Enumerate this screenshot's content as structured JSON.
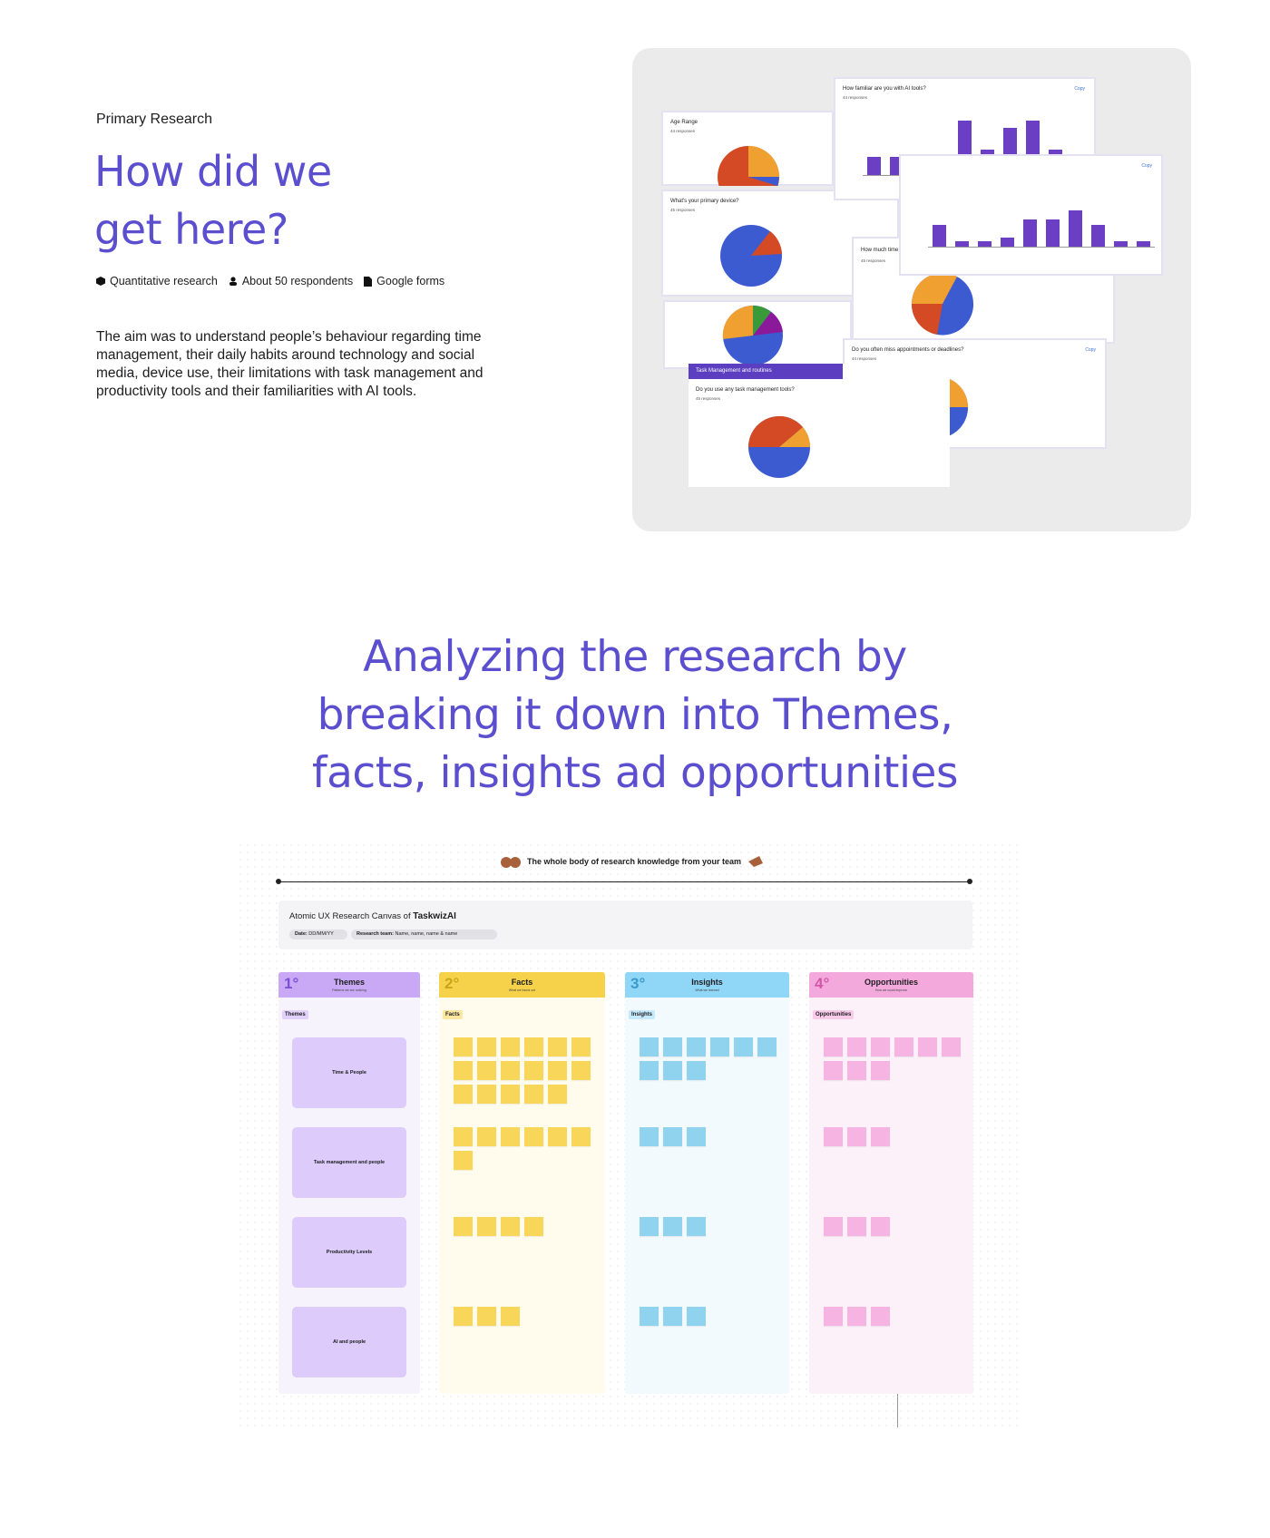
{
  "header": {
    "eyebrow": "Primary Research",
    "title_lines": [
      "How did we",
      "get here?"
    ]
  },
  "tags": [
    "Quantitative research",
    "About 50 respondents",
    "Google forms"
  ],
  "description": "The aim was to understand people’s behaviour regarding time management, their daily habits around technology and social media, device use, their limitations with task management and productivity tools and their familiarities with AI tools.",
  "survey_cards": {
    "copy_label": "Copy",
    "age": {
      "title": "Age Range",
      "responses": "44 responses"
    },
    "ai": {
      "title": "How familiar are you with AI tools?",
      "responses": "44 responses"
    },
    "device": {
      "title": "What's your primary device?",
      "responses": "45 responses"
    },
    "time": {
      "title": "How much time",
      "responses": "45 responses"
    },
    "miss": {
      "title": "Do you often miss appointments or deadlines?",
      "responses": "44 responses"
    },
    "task_section": "Task Management and routines",
    "task": {
      "title": "Do you use any task management tools?",
      "responses": "45 responses"
    }
  },
  "section_title_lines": [
    "Analyzing the research by",
    "breaking it down into Themes,",
    "facts, insights ad opportunities"
  ],
  "board": {
    "banner": "The whole body of research knowledge from your team",
    "canvas_title": "Atomic UX Research Canvas of",
    "product": "TaskwizAI",
    "date_label": "Date:",
    "date": "DD/MM/YY",
    "team_label": "Research team:",
    "team": "Name, name, name & name",
    "columns": [
      {
        "number": "1°",
        "title": "Themes",
        "subtitle": "Patterns we are noticing",
        "tag": "Themes"
      },
      {
        "number": "2°",
        "title": "Facts",
        "subtitle": "What we found out",
        "tag": "Facts"
      },
      {
        "number": "3°",
        "title": "Insights",
        "subtitle": "What we learned",
        "tag": "Insights"
      },
      {
        "number": "4°",
        "title": "Opportunities",
        "subtitle": "How we could improve",
        "tag": "Opportunities"
      }
    ],
    "themes": [
      "Time & People",
      "Task management and people",
      "Productivity Levels",
      "AI and people"
    ]
  }
}
